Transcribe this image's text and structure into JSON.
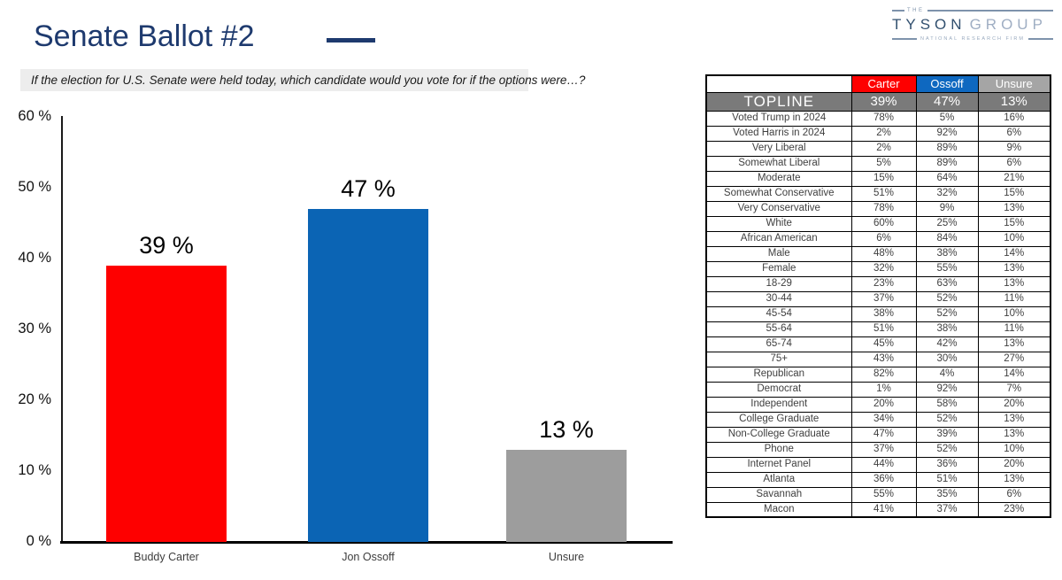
{
  "page": {
    "title": "Senate Ballot #2",
    "question": "If the election for U.S. Senate were held today, which candidate would you vote for if the options were…?"
  },
  "logo": {
    "the": "THE",
    "name_primary": "TYSON",
    "name_secondary": "GROUP",
    "tagline": "NATIONAL RESEARCH FIRM"
  },
  "colors": {
    "title_navy": "#1E3A6E",
    "carter_red": "#FE0000",
    "ossoff_blue": "#0B64B4",
    "unsure_gray": "#9D9D9D",
    "header_gray": "#A5A5A5",
    "topline_gray": "#7A7A7A",
    "question_strip_bg": "#EDEDED"
  },
  "chart_data": {
    "type": "bar",
    "title": "Senate Ballot #2",
    "categories": [
      "Buddy Carter",
      "Jon Ossoff",
      "Unsure"
    ],
    "values": [
      39,
      47,
      13
    ],
    "value_labels": [
      "39 %",
      "47 %",
      "13 %"
    ],
    "bar_colors": [
      "#FE0000",
      "#0B64B4",
      "#9D9D9D"
    ],
    "xlabel": "",
    "ylabel": "",
    "ylim": [
      0,
      60
    ],
    "ytick_values": [
      60,
      50,
      40,
      30,
      20,
      10,
      0
    ],
    "ytick_labels": [
      "60 %",
      "50 %",
      "40 %",
      "30 %",
      "20 %",
      "10 %",
      "0 %"
    ],
    "grid": false,
    "legend": "none"
  },
  "table": {
    "columns": [
      "Carter",
      "Ossoff",
      "Unsure"
    ],
    "column_colors": [
      "#FE0000",
      "#0E68C0",
      "#A5A5A5"
    ],
    "topline": {
      "label": "TOPLINE",
      "values": [
        "39%",
        "47%",
        "13%"
      ]
    },
    "rows": [
      {
        "label": "Voted Trump in 2024",
        "values": [
          "78%",
          "5%",
          "16%"
        ]
      },
      {
        "label": "Voted Harris in 2024",
        "values": [
          "2%",
          "92%",
          "6%"
        ]
      },
      {
        "label": "Very Liberal",
        "values": [
          "2%",
          "89%",
          "9%"
        ]
      },
      {
        "label": "Somewhat Liberal",
        "values": [
          "5%",
          "89%",
          "6%"
        ]
      },
      {
        "label": "Moderate",
        "values": [
          "15%",
          "64%",
          "21%"
        ]
      },
      {
        "label": "Somewhat Conservative",
        "values": [
          "51%",
          "32%",
          "15%"
        ]
      },
      {
        "label": "Very Conservative",
        "values": [
          "78%",
          "9%",
          "13%"
        ]
      },
      {
        "label": "White",
        "values": [
          "60%",
          "25%",
          "15%"
        ]
      },
      {
        "label": "African American",
        "values": [
          "6%",
          "84%",
          "10%"
        ]
      },
      {
        "label": "Male",
        "values": [
          "48%",
          "38%",
          "14%"
        ]
      },
      {
        "label": "Female",
        "values": [
          "32%",
          "55%",
          "13%"
        ]
      },
      {
        "label": "18-29",
        "values": [
          "23%",
          "63%",
          "13%"
        ]
      },
      {
        "label": "30-44",
        "values": [
          "37%",
          "52%",
          "11%"
        ]
      },
      {
        "label": "45-54",
        "values": [
          "38%",
          "52%",
          "10%"
        ]
      },
      {
        "label": "55-64",
        "values": [
          "51%",
          "38%",
          "11%"
        ]
      },
      {
        "label": "65-74",
        "values": [
          "45%",
          "42%",
          "13%"
        ]
      },
      {
        "label": "75+",
        "values": [
          "43%",
          "30%",
          "27%"
        ]
      },
      {
        "label": "Republican",
        "values": [
          "82%",
          "4%",
          "14%"
        ]
      },
      {
        "label": "Democrat",
        "values": [
          "1%",
          "92%",
          "7%"
        ]
      },
      {
        "label": "Independent",
        "values": [
          "20%",
          "58%",
          "20%"
        ]
      },
      {
        "label": "College Graduate",
        "values": [
          "34%",
          "52%",
          "13%"
        ]
      },
      {
        "label": "Non-College Graduate",
        "values": [
          "47%",
          "39%",
          "13%"
        ]
      },
      {
        "label": "Phone",
        "values": [
          "37%",
          "52%",
          "10%"
        ]
      },
      {
        "label": "Internet Panel",
        "values": [
          "44%",
          "36%",
          "20%"
        ]
      },
      {
        "label": "Atlanta",
        "values": [
          "36%",
          "51%",
          "13%"
        ]
      },
      {
        "label": "Savannah",
        "values": [
          "55%",
          "35%",
          "6%"
        ]
      },
      {
        "label": "Macon",
        "values": [
          "41%",
          "37%",
          "23%"
        ]
      }
    ]
  }
}
